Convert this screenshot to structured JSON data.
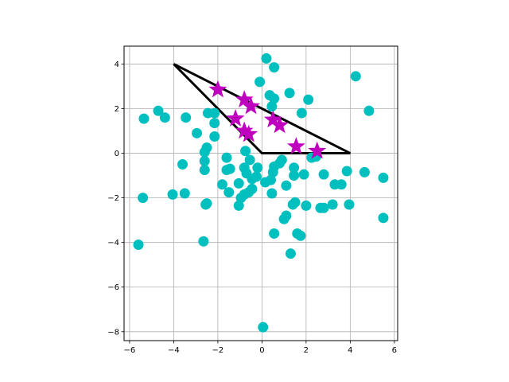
{
  "chart_data": {
    "type": "scatter",
    "title": "",
    "xlabel": "",
    "ylabel": "",
    "xlim": [
      -6.25,
      6.15
    ],
    "ylim": [
      -8.4,
      4.8
    ],
    "xticks": [
      -6,
      -4,
      -2,
      0,
      2,
      4,
      6
    ],
    "yticks": [
      -8,
      -6,
      -4,
      -2,
      0,
      2,
      4
    ],
    "grid": true,
    "colors": {
      "points": "#00bfbf",
      "stars": "#bf00bf",
      "polygon": "#000000",
      "grid": "#b0b0b0"
    },
    "polygon": {
      "points": [
        [
          -4,
          4
        ],
        [
          0,
          0
        ],
        [
          4,
          0
        ],
        [
          -4,
          4
        ]
      ]
    },
    "series": [
      {
        "marker": "circle",
        "points": [
          [
            0.2,
            4.25
          ],
          [
            0.55,
            3.85
          ],
          [
            -0.1,
            3.2
          ],
          [
            4.25,
            3.45
          ],
          [
            1.25,
            2.7
          ],
          [
            0.35,
            2.6
          ],
          [
            0.55,
            2.45
          ],
          [
            0.45,
            2.1
          ],
          [
            2.1,
            2.4
          ],
          [
            4.85,
            1.9
          ],
          [
            -5.35,
            1.55
          ],
          [
            -4.7,
            1.9
          ],
          [
            -4.4,
            1.6
          ],
          [
            -3.45,
            1.6
          ],
          [
            -2.45,
            1.8
          ],
          [
            -2.15,
            1.8
          ],
          [
            -2.15,
            1.35
          ],
          [
            1.8,
            1.8
          ],
          [
            -2.95,
            0.9
          ],
          [
            -2.15,
            0.75
          ],
          [
            -2.5,
            0.25
          ],
          [
            -2.6,
            0.05
          ],
          [
            -0.75,
            0.1
          ],
          [
            -1.6,
            -0.2
          ],
          [
            -0.55,
            -0.3
          ],
          [
            -2.6,
            -0.35
          ],
          [
            -3.6,
            -0.5
          ],
          [
            -1.45,
            -0.7
          ],
          [
            -1.6,
            -0.75
          ],
          [
            -2.6,
            -0.75
          ],
          [
            -0.8,
            -0.65
          ],
          [
            -0.2,
            -0.65
          ],
          [
            0.55,
            -0.6
          ],
          [
            0.5,
            -0.85
          ],
          [
            0.9,
            -0.3
          ],
          [
            0.8,
            -0.45
          ],
          [
            1.45,
            -0.65
          ],
          [
            1.9,
            -0.95
          ],
          [
            1.45,
            -1.0
          ],
          [
            2.25,
            -0.2
          ],
          [
            2.45,
            -0.15
          ],
          [
            2.8,
            -0.95
          ],
          [
            3.85,
            -0.8
          ],
          [
            4.65,
            -0.85
          ],
          [
            5.5,
            -1.1
          ],
          [
            -0.7,
            -0.9
          ],
          [
            -0.45,
            -1.15
          ],
          [
            -0.25,
            -1.05
          ],
          [
            0.15,
            -1.3
          ],
          [
            0.4,
            -1.2
          ],
          [
            1.1,
            -1.45
          ],
          [
            -1.05,
            -1.35
          ],
          [
            -0.45,
            -1.6
          ],
          [
            -0.6,
            -1.75
          ],
          [
            -1.8,
            -1.4
          ],
          [
            -1.5,
            -1.75
          ],
          [
            -0.8,
            -1.85
          ],
          [
            -0.95,
            -2.0
          ],
          [
            0.45,
            -1.8
          ],
          [
            3.3,
            -1.4
          ],
          [
            3.6,
            -1.4
          ],
          [
            -4.05,
            -1.85
          ],
          [
            -3.5,
            -1.8
          ],
          [
            -5.4,
            -2.0
          ],
          [
            -1.05,
            -2.35
          ],
          [
            -2.5,
            -2.25
          ],
          [
            -2.55,
            -2.3
          ],
          [
            1.5,
            -2.2
          ],
          [
            1.4,
            -2.3
          ],
          [
            2.0,
            -2.35
          ],
          [
            2.65,
            -2.45
          ],
          [
            2.8,
            -2.45
          ],
          [
            3.2,
            -2.3
          ],
          [
            3.95,
            -2.3
          ],
          [
            5.5,
            -2.9
          ],
          [
            1.1,
            -2.8
          ],
          [
            1.0,
            -2.95
          ],
          [
            0.55,
            -3.6
          ],
          [
            1.6,
            -3.6
          ],
          [
            1.75,
            -3.7
          ],
          [
            -2.65,
            -3.95
          ],
          [
            -5.6,
            -4.1
          ],
          [
            1.3,
            -4.5
          ],
          [
            0.05,
            -7.8
          ]
        ]
      },
      {
        "marker": "star",
        "points": [
          [
            -2.0,
            2.85
          ],
          [
            -0.8,
            2.4
          ],
          [
            -0.5,
            2.1
          ],
          [
            -1.2,
            1.55
          ],
          [
            0.5,
            1.5
          ],
          [
            0.8,
            1.25
          ],
          [
            -0.8,
            1.0
          ],
          [
            -0.6,
            0.85
          ],
          [
            1.55,
            0.3
          ],
          [
            2.5,
            0.1
          ]
        ]
      }
    ]
  }
}
